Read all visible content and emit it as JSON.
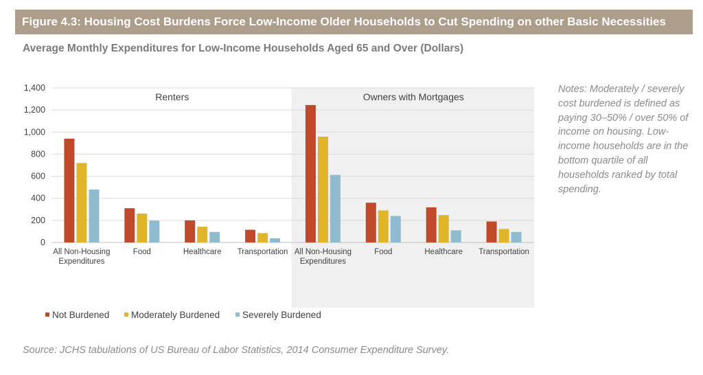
{
  "header": {
    "title": "Figure 4.3: Housing Cost Burdens Force Low-Income Older Households to Cut Spending on other Basic Necessities",
    "subtitle": "Average Monthly Expenditures for Low-Income Households Aged 65 and Over (Dollars)"
  },
  "notes": "Notes: Moderately / severely cost burdened is defined as paying 30–50% / over 50% of income on housing. Low-income households are in the bottom quartile of all households ranked by total spending.",
  "source": "Source: JCHS tabulations of US Bureau of Labor Statistics, 2014 Consumer Expenditure Survey.",
  "chart_data": {
    "type": "bar",
    "title": "Average Monthly Expenditures for Low-Income Households Aged 65 and Over (Dollars)",
    "xlabel": "",
    "ylabel": "",
    "ylim": [
      0,
      1400
    ],
    "yticks": [
      0,
      200,
      400,
      600,
      800,
      1000,
      1200,
      1400
    ],
    "ytick_labels": [
      "0",
      "200",
      "400",
      "600",
      "800",
      "1,000",
      "1,200",
      "1,400"
    ],
    "grid": true,
    "legend_position": "bottom-left",
    "panels": [
      {
        "name": "Renters",
        "shaded": false,
        "categories": [
          [
            "All Non-Housing",
            "Expenditures"
          ],
          [
            "Food"
          ],
          [
            "Healthcare"
          ],
          [
            "Transportation"
          ]
        ],
        "series": [
          {
            "name": "Not Burdened",
            "values": [
              940,
              310,
              200,
              115
            ]
          },
          {
            "name": "Moderately Burdened",
            "values": [
              720,
              262,
              142,
              85
            ]
          },
          {
            "name": "Severely Burdened",
            "values": [
              480,
              198,
              95,
              38
            ]
          }
        ]
      },
      {
        "name": "Owners with Mortgages",
        "shaded": true,
        "categories": [
          [
            "All Non-Housing",
            "Expenditures"
          ],
          [
            "Food"
          ],
          [
            "Healthcare"
          ],
          [
            "Transportation"
          ]
        ],
        "series": [
          {
            "name": "Not Burdened",
            "values": [
              1245,
              360,
              318,
              190
            ]
          },
          {
            "name": "Moderately Burdened",
            "values": [
              958,
              290,
              248,
              122
            ]
          },
          {
            "name": "Severely Burdened",
            "values": [
              612,
              240,
              110,
              95
            ]
          }
        ]
      }
    ],
    "legend": [
      {
        "name": "Not Burdened",
        "color": "#c0492a"
      },
      {
        "name": "Moderately Burdened",
        "color": "#e0b52a"
      },
      {
        "name": "Severely Burdened",
        "color": "#8fbbce"
      }
    ],
    "colors": {
      "not_burdened": "#c0492a",
      "moderately_burdened": "#e0b52a",
      "severely_burdened": "#8fbbce",
      "panel_shade": "#f0f0f0",
      "grid": "#d9d9d9",
      "title_bar": "#ad9d8b"
    }
  }
}
